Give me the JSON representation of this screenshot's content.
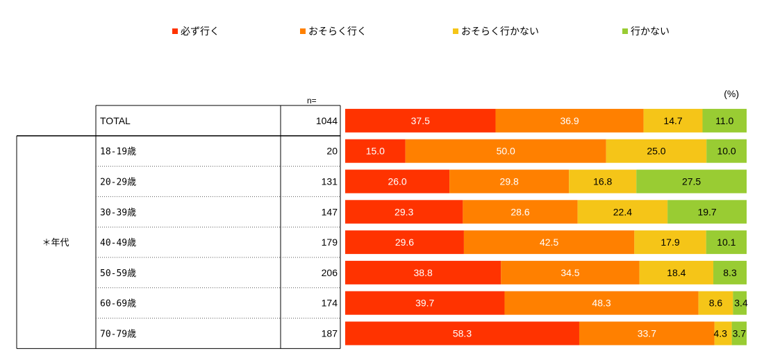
{
  "chart_data": {
    "type": "bar",
    "orientation": "horizontal-stacked-100",
    "unit_label": "(%)",
    "n_header": "n=",
    "group_label": "＊年代",
    "categories": [
      "TOTAL",
      "18-19歳",
      "20-29歳",
      "30-39歳",
      "40-49歳",
      "50-59歳",
      "60-69歳",
      "70-79歳"
    ],
    "n": [
      "1044",
      "20",
      "131",
      "147",
      "179",
      "206",
      "174",
      "187"
    ],
    "series": [
      {
        "name": "必ず行く",
        "color": "#ff3300",
        "values": [
          37.5,
          15.0,
          26.0,
          29.3,
          29.6,
          38.8,
          39.7,
          58.3
        ],
        "labels": [
          "37.5",
          "15.0",
          "26.0",
          "29.3",
          "29.6",
          "38.8",
          "39.7",
          "58.3"
        ]
      },
      {
        "name": "おそらく行く",
        "color": "#ff8000",
        "values": [
          36.9,
          50.0,
          29.8,
          28.6,
          42.5,
          34.5,
          48.3,
          33.7
        ],
        "labels": [
          "36.9",
          "50.0",
          "29.8",
          "28.6",
          "42.5",
          "34.5",
          "48.3",
          "33.7"
        ]
      },
      {
        "name": "おそらく行かない",
        "color": "#f5c518",
        "values": [
          14.7,
          25.0,
          16.8,
          22.4,
          17.9,
          18.4,
          8.6,
          4.3
        ],
        "labels": [
          "14.7",
          "25.0",
          "16.8",
          "22.4",
          "17.9",
          "18.4",
          "8.6",
          "4.3"
        ]
      },
      {
        "name": "行かない",
        "color": "#99cc33",
        "values": [
          11.0,
          10.0,
          27.5,
          19.7,
          10.1,
          8.3,
          3.4,
          3.7
        ],
        "labels": [
          "11.0",
          "10.0",
          "27.5",
          "19.7",
          "10.1",
          "8.3",
          "3.4",
          "3.7"
        ]
      }
    ]
  }
}
